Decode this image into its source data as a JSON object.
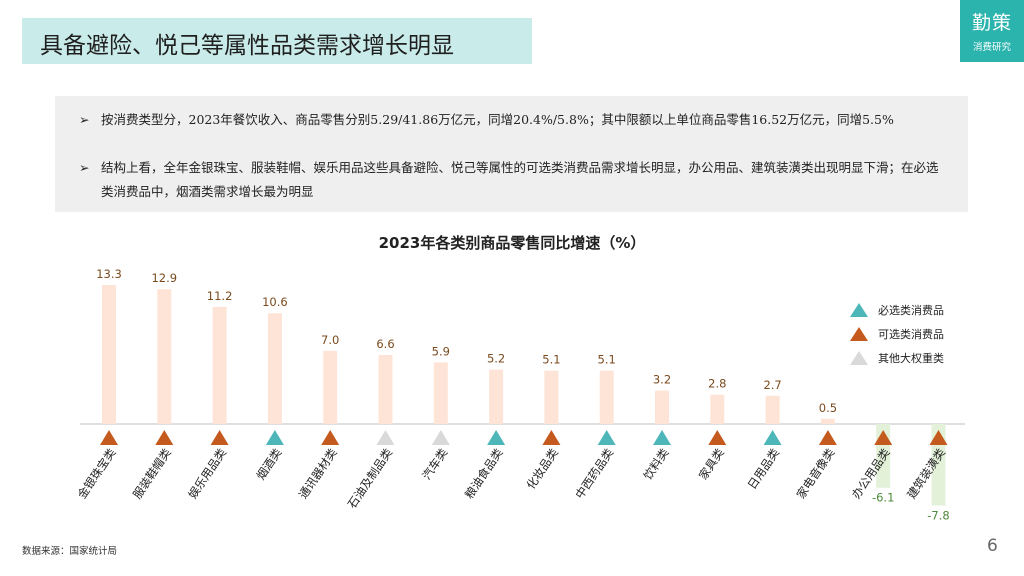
{
  "header": {
    "title": "具备避险、悦己等属性品类需求增长明显"
  },
  "logo": {
    "main": "勤策",
    "sub": "消费研究"
  },
  "summary": {
    "bullet_mark": "➢",
    "bullets": [
      "按消费类型分，2023年餐饮收入、商品零售分别5.29/41.86万亿元，同增20.4%/5.8%；其中限额以上单位商品零售16.52万亿元，同增5.5%",
      "结构上看，全年金银珠宝、服装鞋帽、娱乐用品这些具备避险、悦己等属性的可选类消费品需求增长明显，办公用品、建筑装潢类出现明显下滑；在必选类消费品中，烟酒类需求增长最为明显"
    ]
  },
  "legend": {
    "items": [
      {
        "label": "必选类消费品",
        "color": "#4db6b8"
      },
      {
        "label": "可选类消费品",
        "color": "#c55a1e"
      },
      {
        "label": "其他大权重类",
        "color": "#d9d9d9"
      }
    ]
  },
  "colors": {
    "positive_bar": "#fde4d6",
    "negative_bar": "#e3f1d8",
    "positive_label": "#7a4a1e",
    "negative_label": "#4e8a3a",
    "baseline": "#bfbfbf"
  },
  "chart_data": {
    "type": "bar",
    "title": "2023年各类别商品零售同比增速（%）",
    "categories": [
      "金银珠宝类",
      "服装鞋帽类",
      "娱乐用品类",
      "烟酒类",
      "通讯器材类",
      "石油及制品类",
      "汽车类",
      "粮油食品类",
      "化妆品类",
      "中西药品类",
      "饮料类",
      "家具类",
      "日用品类",
      "家电音像类",
      "办公用品类",
      "建筑装潢类"
    ],
    "values": [
      13.3,
      12.9,
      11.2,
      10.6,
      7.0,
      6.6,
      5.9,
      5.2,
      5.1,
      5.1,
      3.2,
      2.8,
      2.7,
      0.5,
      -6.1,
      -7.8
    ],
    "value_labels": [
      "13.3",
      "12.9",
      "11.2",
      "10.6",
      "7.0",
      "6.6",
      "5.9",
      "5.2",
      "5.1",
      "5.1",
      "3.2",
      "2.8",
      "2.7",
      "0.5",
      "-6.1",
      "-7.8"
    ],
    "groups": [
      "可选类消费品",
      "可选类消费品",
      "可选类消费品",
      "必选类消费品",
      "可选类消费品",
      "其他大权重类",
      "其他大权重类",
      "必选类消费品",
      "可选类消费品",
      "必选类消费品",
      "必选类消费品",
      "可选类消费品",
      "必选类消费品",
      "可选类消费品",
      "可选类消费品",
      "可选类消费品"
    ],
    "legend_position": "right",
    "grid": false
  },
  "footer": {
    "source": "数据来源：国家统计局",
    "page": "6"
  }
}
